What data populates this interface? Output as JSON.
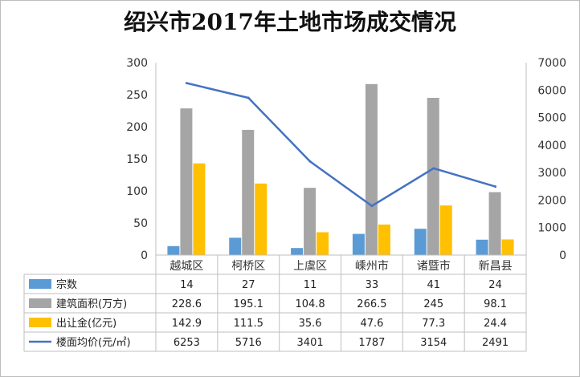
{
  "chart_data": {
    "type": "bar",
    "title": "绍兴市2017年土地市场成交情况",
    "categories": [
      "越城区",
      "柯桥区",
      "上虞区",
      "嵊州市",
      "诸暨市",
      "新昌县"
    ],
    "series": [
      {
        "name": "宗数",
        "type": "bar",
        "axis": "left",
        "color": "#5b9bd5",
        "values": [
          14,
          27,
          11,
          33,
          41,
          24
        ]
      },
      {
        "name": "建筑面积(万方)",
        "type": "bar",
        "axis": "left",
        "color": "#a5a5a5",
        "values": [
          228.6,
          195.1,
          104.8,
          266.5,
          245,
          98.1
        ]
      },
      {
        "name": "出让金(亿元)",
        "type": "bar",
        "axis": "left",
        "color": "#ffc000",
        "values": [
          142.9,
          111.5,
          35.6,
          47.6,
          77.3,
          24.4
        ]
      },
      {
        "name": "楼面均价(元/㎡)",
        "type": "line",
        "axis": "right",
        "color": "#4472c4",
        "values": [
          6253,
          5716,
          3401,
          1787,
          3154,
          2491
        ]
      }
    ],
    "y_left": {
      "min": 0,
      "max": 300,
      "ticks": [
        0,
        50,
        100,
        150,
        200,
        250,
        300
      ]
    },
    "y_right": {
      "min": 0,
      "max": 7000,
      "ticks": [
        0,
        1000,
        2000,
        3000,
        4000,
        5000,
        6000,
        7000
      ]
    },
    "table": {
      "rows": [
        {
          "label": "宗数",
          "values": [
            "14",
            "27",
            "11",
            "33",
            "41",
            "24"
          ]
        },
        {
          "label": "建筑面积(万方)",
          "values": [
            "228.6",
            "195.1",
            "104.8",
            "266.5",
            "245",
            "98.1"
          ]
        },
        {
          "label": "出让金(亿元)",
          "values": [
            "142.9",
            "111.5",
            "35.6",
            "47.6",
            "77.3",
            "24.4"
          ]
        },
        {
          "label": "楼面均价(元/㎡)",
          "values": [
            "6253",
            "5716",
            "3401",
            "1787",
            "3154",
            "2491"
          ]
        }
      ]
    },
    "legend": "data-table",
    "grid": false
  }
}
